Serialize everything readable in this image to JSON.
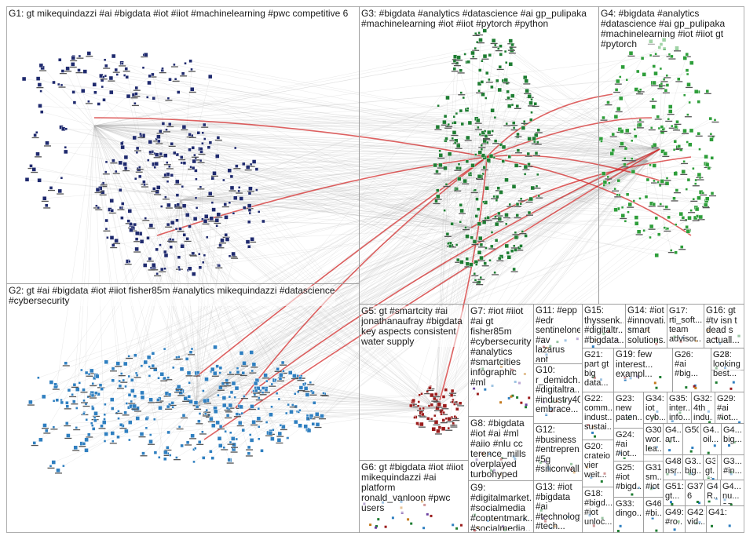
{
  "colors": {
    "border": "#9a9a9a",
    "G1": "#1f2a6e",
    "G2": "#2f7fc0",
    "G3": "#1e7d32",
    "G4": "#2e9e3a",
    "G5": "#9b1c1c",
    "edge": "#aaaaaa",
    "highlight_edge": "#d21f1f"
  },
  "groups": [
    {
      "id": "G1",
      "label": "G1: gt mikequindazzi #ai #bigdata #iot #iiot #machinelearning #pwc competitive 6"
    },
    {
      "id": "G2",
      "label": "G2: gt #ai #bigdata #iot #iiot fisher85m #analytics mikequindazzi #datascience\n#cybersecurity"
    },
    {
      "id": "G3",
      "label": "G3: #bigdata #analytics #datascience #ai gp_pulipaka\n#machinelearning #iot #iiot #pytorch #python"
    },
    {
      "id": "G4",
      "label": "G4: #bigdata #analytics\n#datascience #ai gp_pulipaka\n#machinelearning #iot #iiot gt\n#pytorch"
    },
    {
      "id": "G5",
      "label": "G5: gt #smartcity #ai\njonathanaufray #bigdata\nkey aspects consistent\nwater supply"
    },
    {
      "id": "G6",
      "label": "G6: gt #bigdata #iot #iiot\nmikequindazzi #ai platform\nronald_vanloon #pwc\nusers"
    },
    {
      "id": "G7",
      "label": "G7: #iot #iiot\n#ai gt\nfisher85m\n#cybersecurity\n#analytics\n#smartcities\ninfographic #ml"
    },
    {
      "id": "G8",
      "label": "G8: #bigdata\n#iot #ai #ml\n#aiio #nlu cc\nterence_mills\noverplayed\nturbohyped"
    },
    {
      "id": "G9",
      "label": "G9:\n#digitalmarket...\n#socialmedia\n#contentmark...\n#socialmedia..."
    },
    {
      "id": "G10",
      "label": "G10:\nr_demidch...\n#digitaltra...\n#industry40\nembrace..."
    },
    {
      "id": "G11",
      "label": "G11: #epp\n#edr\nsentinelone\n#av lazarus\napt targets..."
    },
    {
      "id": "G12",
      "label": "G12:\n#business\n#entrepren...\n#5g\n#siliconvall..."
    },
    {
      "id": "G13",
      "label": "G13: #iot\n#bigdata #ai\n#technology\n#tech..."
    },
    {
      "id": "G14",
      "label": "G14: #iot\n#innovati...\nsmart\nsolutions..."
    },
    {
      "id": "G15",
      "label": "G15:\nthyssenk...\n#digitaltr...\n#bigdata..."
    },
    {
      "id": "G16",
      "label": "G16: gt\n#tv isn t\ndead s\nactuall..."
    },
    {
      "id": "G17",
      "label": "G17:\nrti_soft...\nteam\nadvisor..."
    },
    {
      "id": "G18",
      "label": "G18:\n#bigd...\n#iot\nunloc..."
    },
    {
      "id": "G19",
      "label": "G19: few\ninterest...\nexampl..."
    },
    {
      "id": "G20",
      "label": "G20:\ncrateio\nvier\nweit..."
    },
    {
      "id": "G21",
      "label": "G21:\npart gt\nbig\ndata..."
    },
    {
      "id": "G22",
      "label": "G22:\ncomm...\nindust...\nsustai..."
    },
    {
      "id": "G23",
      "label": "G23:\nnew\npaten..."
    },
    {
      "id": "G24",
      "label": "G24:\n#ai\n#iot..."
    },
    {
      "id": "G25",
      "label": "G25:\n#iot\n#bigd..."
    },
    {
      "id": "G26",
      "label": "G26:\n#ai\n#big..."
    },
    {
      "id": "G27",
      "label": "G27:\nlooking\nbest..."
    },
    {
      "id": "G28",
      "label": "G28"
    },
    {
      "id": "G29",
      "label": "G29:\n#ai\n#iot..."
    },
    {
      "id": "G30",
      "label": "G30:\nwor...\nlea..."
    },
    {
      "id": "G31",
      "label": "G31:\nsm...\n#iot"
    },
    {
      "id": "G32",
      "label": "G32:\n4th\nindu..."
    },
    {
      "id": "G33",
      "label": "G33:\ndingo..."
    },
    {
      "id": "G34",
      "label": "G34:\niot\ncyb..."
    },
    {
      "id": "G35",
      "label": "G35:\ninter...\ninfo..."
    },
    {
      "id": "G36",
      "label": "G36: gt...\ngt..."
    },
    {
      "id": "G37",
      "label": "G37:\n6"
    },
    {
      "id": "G38",
      "label": "G3...\n#in..."
    },
    {
      "id": "G39",
      "label": "G3...\nbig..."
    },
    {
      "id": "G40",
      "label": "G4...\nbig..."
    },
    {
      "id": "G41",
      "label": "G41:"
    },
    {
      "id": "G42",
      "label": "G42:\nvid..."
    },
    {
      "id": "G43",
      "label": "G4...\nart..."
    },
    {
      "id": "G44",
      "label": "G4...\noil..."
    },
    {
      "id": "G45",
      "label": "G4...\nR..."
    },
    {
      "id": "G46",
      "label": "G46:\n#bi..."
    },
    {
      "id": "G47",
      "label": "G4...\nnu...\naq..."
    },
    {
      "id": "G48",
      "label": "G48:\nnsr..."
    },
    {
      "id": "G49",
      "label": "G49:\n#ro..."
    },
    {
      "id": "G50",
      "label": "G50"
    },
    {
      "id": "G51",
      "label": "G51:\ngt..."
    }
  ]
}
